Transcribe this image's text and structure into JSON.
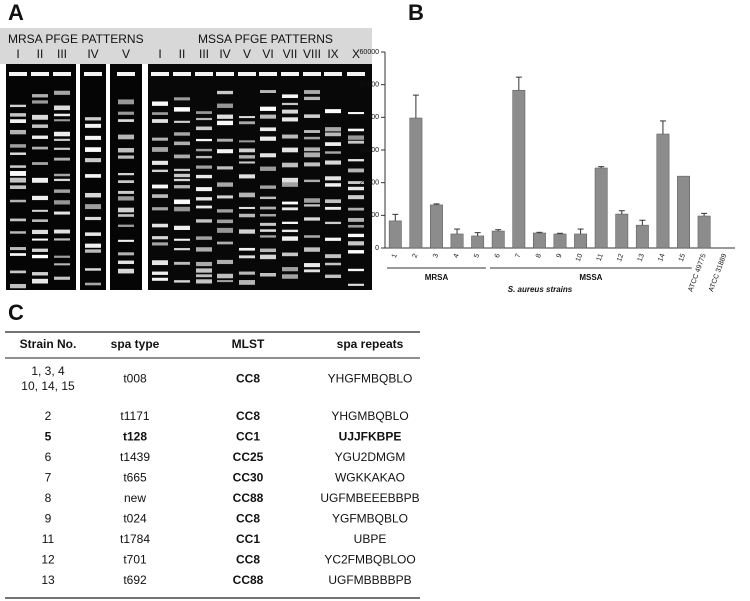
{
  "panel_labels": [
    "A",
    "B",
    "C"
  ],
  "panel_a": {
    "groups": [
      "MRSA PFGE PATTERNS",
      "MSSA PFGE PATTERNS"
    ],
    "lanes": [
      "I",
      "II",
      "III",
      "IV",
      "V",
      "I",
      "II",
      "III",
      "IV",
      "V",
      "VI",
      "VII",
      "VIII",
      "IX",
      "X"
    ]
  },
  "chart_data": {
    "type": "bar",
    "x_label": "S. aureus strains",
    "color": "#8c8c8c",
    "categories": [
      "1",
      "2",
      "3",
      "4",
      "5",
      "6",
      "7",
      "8",
      "9",
      "10",
      "11",
      "12",
      "13",
      "14",
      "15",
      "ATCC 49775",
      "ATCC 31889"
    ],
    "values": [
      8300,
      39800,
      13200,
      4300,
      3700,
      5200,
      48300,
      4600,
      4300,
      4300,
      24500,
      10400,
      7000,
      34900,
      22000,
      9800,
      null
    ],
    "errors": [
      2000,
      7000,
      300,
      1500,
      1000,
      400,
      4000,
      200,
      200,
      1500,
      400,
      1000,
      1500,
      4000,
      null,
      800,
      null
    ],
    "groups": [
      {
        "label": "MRSA",
        "from": 1,
        "to": 5
      },
      {
        "label": "MSSA",
        "from": 6,
        "to": 15
      }
    ],
    "ylim": [
      0,
      60000
    ],
    "yticks": [
      0,
      10000,
      20000,
      30000,
      40000,
      50000,
      60000
    ]
  },
  "panel_c": {
    "header": [
      "Strain No.",
      "spa type",
      "MLST",
      "spa repeats"
    ],
    "rows": [
      [
        [
          "1, 3, 4",
          "10, 14, 15"
        ],
        "t008",
        "CC8",
        "YHGFMBQBLO"
      ],
      [
        [
          "2"
        ],
        "t1171",
        "CC8",
        "YHGMBQBLO"
      ],
      [
        [
          "5"
        ],
        "t128",
        "CC1",
        "UJJFKBPE"
      ],
      [
        [
          "6"
        ],
        "t1439",
        "CC25",
        "YGU2DMGM"
      ],
      [
        [
          "7"
        ],
        "t665",
        "CC30",
        "WGKKAKAO"
      ],
      [
        [
          "8"
        ],
        "new",
        "CC88",
        "UGFMBEEEBBPB"
      ],
      [
        [
          "9"
        ],
        "t024",
        "CC8",
        "YGFMBQBLO"
      ],
      [
        [
          "11"
        ],
        "t1784",
        "CC1",
        "UBPE"
      ],
      [
        [
          "12"
        ],
        "t701",
        "CC8",
        "YC2FMBQBLOO"
      ],
      [
        [
          "13"
        ],
        "t692",
        "CC88",
        "UGFMBBBBPB"
      ]
    ]
  }
}
